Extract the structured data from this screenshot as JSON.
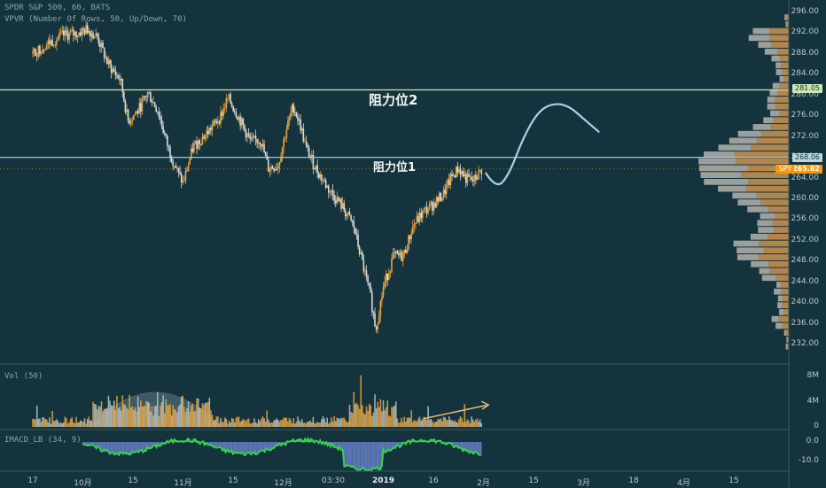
{
  "header": {
    "symbol_line": "SPDR S&P 500, 60, BATS",
    "vpvr_line": "VPVR (Number Of Rows, 50, Up/Down, 70)"
  },
  "annotations": {
    "resistance_1": "阻力位1",
    "resistance_2": "阻力位2"
  },
  "price_tags": {
    "level_2": "281.05",
    "level_1": "268.06",
    "spy_label": "SPY",
    "spy_price": "265.82"
  },
  "panes": {
    "volume_label": "Vol (50)",
    "macd_label": "IMACD_LB (34, 9)"
  },
  "colors": {
    "background": "#14333d",
    "candle": "#e6a540",
    "candle_down": "#d9d9d9",
    "volume": "#e6a540",
    "resistance_line": "#cde7b0",
    "support_line": "#bcd6df",
    "projection": "#a9d3df",
    "vpvr_up": "#d79a52",
    "vpvr_down": "#c8c6be",
    "spy_tag": "#ff9800"
  },
  "chart_data": {
    "type": "candlestick",
    "price_axis_ticks": [
      "296.00",
      "292.00",
      "288.00",
      "284.00",
      "280.00",
      "276.00",
      "272.00",
      "268.00",
      "264.00",
      "260.00",
      "256.00",
      "252.00",
      "248.00",
      "244.00",
      "240.00",
      "236.00",
      "232.00"
    ],
    "price_range": [
      231,
      297
    ],
    "volume_axis_ticks": [
      "8M",
      "4M",
      "0"
    ],
    "volume_range": [
      0,
      9
    ],
    "macd_axis_ticks": [
      "0.0",
      "-10.0"
    ],
    "macd_range": [
      -14,
      5
    ],
    "x_tick_labels": [
      {
        "label": "17",
        "pos": 0.0
      },
      {
        "label": "10月",
        "pos": 1.0
      },
      {
        "label": "15",
        "pos": 2.0
      },
      {
        "label": "11月",
        "pos": 3.0
      },
      {
        "label": "15",
        "pos": 4.0
      },
      {
        "label": "12月",
        "pos": 5.0
      },
      {
        "label": "03:30",
        "pos": 6.0
      },
      {
        "label": "2019",
        "pos": 7.0,
        "bold": true
      },
      {
        "label": "16",
        "pos": 8.0
      },
      {
        "label": "2月",
        "pos": 9.0
      },
      {
        "label": "15",
        "pos": 10.0
      },
      {
        "label": "3月",
        "pos": 11.0
      },
      {
        "label": "18",
        "pos": 12.0
      },
      {
        "label": "4月",
        "pos": 13.0
      },
      {
        "label": "15",
        "pos": 14.0
      }
    ],
    "price_path": [
      [
        0.0,
        288.0
      ],
      [
        0.3,
        290.0
      ],
      [
        0.6,
        291.5
      ],
      [
        0.9,
        292.0
      ],
      [
        1.1,
        292.8
      ],
      [
        1.3,
        291.0
      ],
      [
        1.5,
        286.0
      ],
      [
        1.75,
        283.0
      ],
      [
        1.9,
        275.0
      ],
      [
        2.1,
        277.0
      ],
      [
        2.3,
        280.5
      ],
      [
        2.5,
        277.0
      ],
      [
        2.7,
        270.0
      ],
      [
        2.9,
        265.0
      ],
      [
        3.0,
        263.0
      ],
      [
        3.2,
        270.0
      ],
      [
        3.5,
        273.0
      ],
      [
        3.75,
        276.0
      ],
      [
        3.9,
        279.5
      ],
      [
        4.1,
        276.0
      ],
      [
        4.35,
        271.0
      ],
      [
        4.55,
        271.5
      ],
      [
        4.7,
        266.0
      ],
      [
        4.9,
        266.5
      ],
      [
        5.05,
        273.0
      ],
      [
        5.2,
        278.0
      ],
      [
        5.35,
        274.0
      ],
      [
        5.45,
        270.0
      ],
      [
        5.65,
        266.0
      ],
      [
        5.9,
        262.0
      ],
      [
        6.15,
        259.0
      ],
      [
        6.4,
        255.0
      ],
      [
        6.6,
        247.0
      ],
      [
        6.75,
        241.0
      ],
      [
        6.85,
        235.0
      ],
      [
        7.0,
        243.0
      ],
      [
        7.2,
        249.0
      ],
      [
        7.4,
        249.0
      ],
      [
        7.6,
        255.0
      ],
      [
        7.8,
        257.5
      ],
      [
        8.0,
        259.0
      ],
      [
        8.2,
        261.0
      ],
      [
        8.35,
        264.0
      ],
      [
        8.5,
        266.0
      ],
      [
        8.65,
        264.0
      ],
      [
        8.8,
        263.5
      ],
      [
        8.97,
        265.8
      ]
    ],
    "projection_path": [
      [
        9.05,
        265.0
      ],
      [
        9.25,
        262.0
      ],
      [
        9.5,
        264.5
      ],
      [
        9.8,
        272.0
      ],
      [
        10.1,
        277.0
      ],
      [
        10.4,
        278.5
      ],
      [
        10.7,
        278.0
      ],
      [
        11.0,
        275.5
      ],
      [
        11.3,
        273.0
      ]
    ],
    "volume_projection_arrow": [
      [
        7.8,
        1.3
      ],
      [
        9.1,
        3.5
      ]
    ],
    "resistance_levels": [
      {
        "name": "阻力位2",
        "price": 281.05
      },
      {
        "name": "阻力位1",
        "price": 268.06
      }
    ],
    "last_price": 265.82
  }
}
